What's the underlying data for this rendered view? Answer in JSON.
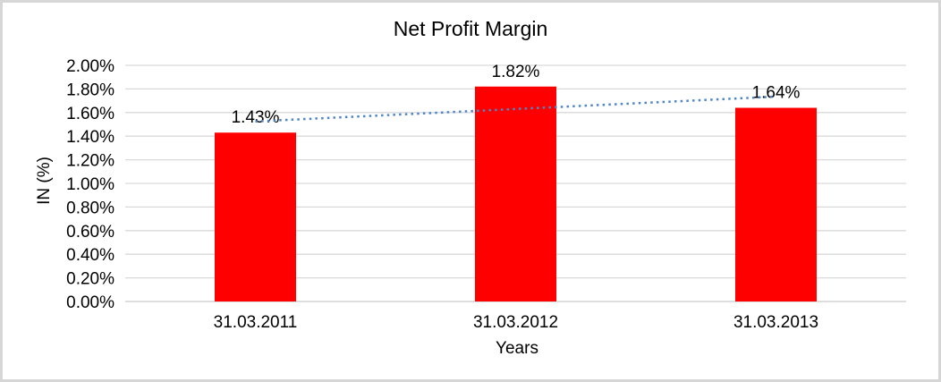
{
  "window": {
    "background": "#FFFFFF",
    "frame_color": "#D6D6D6"
  },
  "chart_data": {
    "type": "bar",
    "title": "Net Profit Margin",
    "xlabel": "Years",
    "ylabel": "IN (%)",
    "categories": [
      "31.03.2011",
      "31.03.2012",
      "31.03.2013"
    ],
    "series": [
      {
        "name": "Net Profit Margin",
        "values": [
          1.43,
          1.82,
          1.64
        ],
        "color": "#FF0000"
      }
    ],
    "data_labels": [
      "1.43%",
      "1.82%",
      "1.64%"
    ],
    "ylim": [
      0,
      2.0
    ],
    "y_tick_labels": [
      "0.00%",
      "0.20%",
      "0.40%",
      "0.60%",
      "0.80%",
      "1.00%",
      "1.20%",
      "1.40%",
      "1.60%",
      "1.80%",
      "2.00%"
    ],
    "grid": "horizontal",
    "gridline_color": "#D9D9D9",
    "axis_line_color": "#C9C9C9",
    "text_color": "#000000",
    "legend": "none",
    "trendline": {
      "type": "linear",
      "style": "dotted",
      "color": "#4F86C6"
    }
  }
}
